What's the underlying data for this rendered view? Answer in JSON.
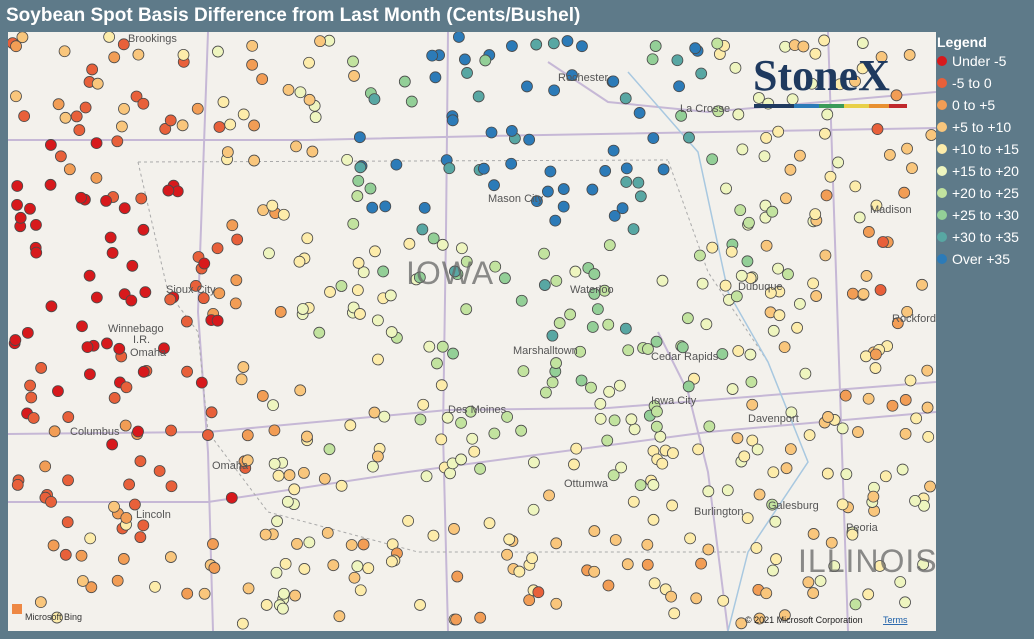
{
  "header": {
    "title": "Soybean Spot Basis Difference from Last Month (Cents/Bushel)"
  },
  "legend": {
    "title": "Legend",
    "items": [
      {
        "label": "Under -5",
        "color": "#d7191c"
      },
      {
        "label": "-5 to 0",
        "color": "#e8603a"
      },
      {
        "label": "0 to +5",
        "color": "#f29d55"
      },
      {
        "label": "+5 to +10",
        "color": "#f9c67c"
      },
      {
        "label": "+10 to +15",
        "color": "#fdecaa"
      },
      {
        "label": "+15 to +20",
        "color": "#eef5bf"
      },
      {
        "label": "+20 to +25",
        "color": "#c2e39f"
      },
      {
        "label": "+25 to +30",
        "color": "#93cf97"
      },
      {
        "label": "+30 to +35",
        "color": "#58a7a3"
      },
      {
        "label": "Over +35",
        "color": "#2c7bb8"
      }
    ]
  },
  "map": {
    "logo": "StoneX",
    "cities": [
      "Brookings",
      "Rochester",
      "La Crosse",
      "Mason City",
      "Madison",
      "Sioux City",
      "Waterloo",
      "Dubuque",
      "Rockford",
      "Winnebago",
      "I.R.",
      "Omaha",
      "Marshalltown",
      "Cedar Rapids",
      "Iowa City",
      "Des Moines",
      "Davenport",
      "Columbus",
      "Omaha",
      "Ottumwa",
      "Galesburg",
      "Burlington",
      "Lincoln",
      "Peoria"
    ],
    "states": [
      "IOWA",
      "ILLINOIS"
    ],
    "attribution": {
      "bing": "Microsoft Bing",
      "copyright": "© 2021 Microsoft Corporation",
      "terms": "Terms"
    }
  }
}
